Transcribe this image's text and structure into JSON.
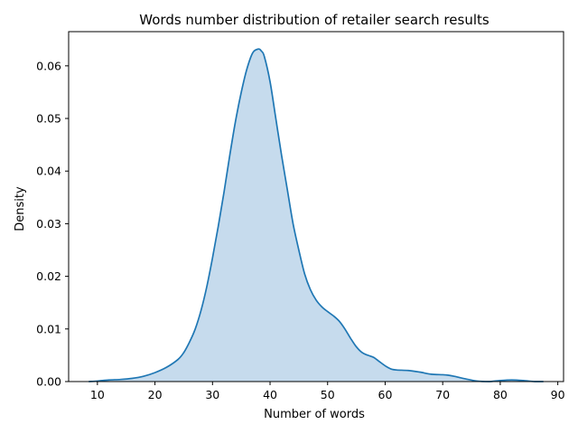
{
  "chart_data": {
    "type": "area",
    "title": "Words number distribution of retailer search results",
    "xlabel": "Number of words",
    "ylabel": "Density",
    "xlim": [
      5,
      91
    ],
    "ylim": [
      0,
      0.0665
    ],
    "xticks": [
      10,
      20,
      30,
      40,
      50,
      60,
      70,
      80,
      90
    ],
    "yticks": [
      0.0,
      0.01,
      0.02,
      0.03,
      0.04,
      0.05,
      0.06
    ],
    "ytick_labels": [
      "0.00",
      "0.01",
      "0.02",
      "0.03",
      "0.04",
      "0.05",
      "0.06"
    ],
    "grid": false,
    "series": [
      {
        "line_color": "#1f77b4",
        "fill_color": "#c6dbed",
        "x": [
          8.5,
          10,
          12,
          14,
          16,
          18,
          20,
          22,
          24,
          25,
          26,
          27,
          28,
          29,
          30,
          31,
          32,
          33,
          34,
          35,
          36,
          37,
          38,
          38.5,
          39,
          40,
          41,
          42,
          43,
          44,
          45,
          46,
          47,
          48,
          49,
          50,
          51,
          52,
          53,
          54,
          55,
          56,
          57,
          58,
          59,
          60,
          61,
          62,
          64,
          66,
          68,
          70,
          71,
          72,
          74,
          76,
          78,
          80,
          82,
          84,
          86,
          87.5
        ],
        "values": [
          0.0,
          0.0001,
          0.0003,
          0.0004,
          0.0006,
          0.001,
          0.0017,
          0.0027,
          0.0042,
          0.0055,
          0.0075,
          0.01,
          0.0135,
          0.018,
          0.0235,
          0.0295,
          0.036,
          0.043,
          0.0495,
          0.055,
          0.0595,
          0.0625,
          0.0632,
          0.0628,
          0.0618,
          0.057,
          0.05,
          0.043,
          0.0365,
          0.03,
          0.025,
          0.0205,
          0.0175,
          0.0155,
          0.0142,
          0.0133,
          0.0125,
          0.0115,
          0.01,
          0.0082,
          0.0066,
          0.0055,
          0.005,
          0.0046,
          0.0038,
          0.003,
          0.0024,
          0.0022,
          0.0021,
          0.0018,
          0.0014,
          0.0013,
          0.0012,
          0.001,
          0.0005,
          0.0001,
          0.0,
          0.0002,
          0.0003,
          0.0002,
          0.0,
          0.0
        ]
      }
    ]
  }
}
